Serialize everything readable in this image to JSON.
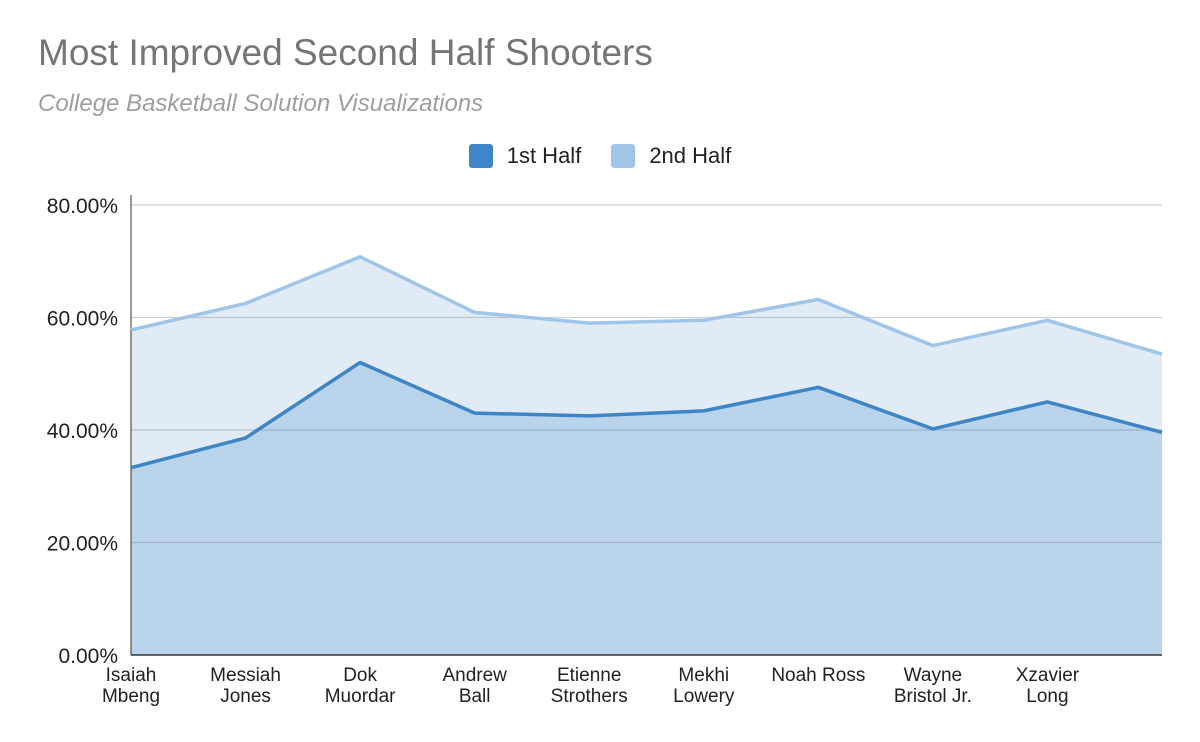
{
  "chart_data": {
    "type": "area",
    "title": "Most Improved Second Half Shooters",
    "subtitle": "College Basketball Solution Visualizations",
    "categories": [
      [
        "Isaiah",
        "Mbeng"
      ],
      [
        "Messiah",
        "Jones"
      ],
      [
        "Dok",
        "Muordar"
      ],
      [
        "Andrew",
        "Ball"
      ],
      [
        "Etienne",
        "Strothers"
      ],
      [
        "Mekhi",
        "Lowery"
      ],
      [
        "Noah Ross"
      ],
      [
        "Wayne",
        "Bristol Jr."
      ],
      [
        "Xzavier",
        "Long"
      ],
      []
    ],
    "series": [
      {
        "name": "1st Half",
        "color": "#3d85c6",
        "fill": "#b9d3eb",
        "values": [
          33.3,
          38.6,
          52.0,
          43.0,
          42.5,
          43.4,
          47.6,
          40.2,
          45.0,
          39.6
        ]
      },
      {
        "name": "2nd Half",
        "color": "#9fc5e8",
        "fill": "#e0ebf6",
        "values": [
          57.8,
          62.5,
          70.8,
          60.9,
          59.0,
          59.5,
          63.2,
          55.0,
          59.5,
          53.5
        ]
      }
    ],
    "y_ticks": [
      "0.00%",
      "20.00%",
      "40.00%",
      "60.00%",
      "80.00%"
    ],
    "ylim": [
      0,
      80
    ],
    "grid": true,
    "legend_position": "top"
  }
}
